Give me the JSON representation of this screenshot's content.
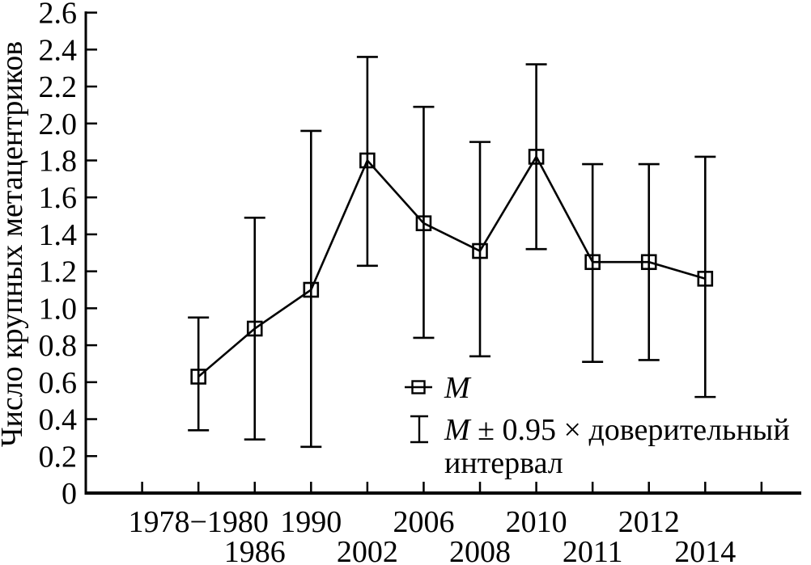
{
  "figure": {
    "background_color": "#ffffff",
    "foreground_color": "#000000"
  },
  "chart_data": {
    "type": "line",
    "title": "",
    "xlabel": "",
    "ylabel": "Число крупных метацентриков",
    "ylim": [
      0,
      2.6
    ],
    "y_tick_step": 0.2,
    "y_tick_labels": [
      "0",
      "0.2",
      "0.4",
      "0.6",
      "0.8",
      "1.0",
      "1.2",
      "1.4",
      "1.6",
      "1.8",
      "2.0",
      "2.2",
      "2.4",
      "2.6"
    ],
    "grid": false,
    "categories": [
      "1978−1980",
      "1986",
      "1990",
      "2002",
      "2006",
      "2008",
      "2010",
      "2011",
      "2012",
      "2014"
    ],
    "x_label_rows": [
      1,
      2,
      1,
      2,
      1,
      2,
      1,
      2,
      1,
      2
    ],
    "series": [
      {
        "name": "M",
        "marker": "open-square",
        "values": [
          0.63,
          0.89,
          1.1,
          1.8,
          1.46,
          1.31,
          1.82,
          1.25,
          1.25,
          1.16
        ]
      }
    ],
    "error_bars": {
      "label": "M ± 0.95 × доверительный интервал",
      "low": [
        0.34,
        0.29,
        0.25,
        1.23,
        0.84,
        0.74,
        1.32,
        0.71,
        0.72,
        0.52
      ],
      "high": [
        0.95,
        1.49,
        1.96,
        2.36,
        2.09,
        1.9,
        2.32,
        1.78,
        1.78,
        1.82
      ]
    },
    "legend": {
      "position": "inside-bottom-right",
      "entries": [
        {
          "symbol": "open-square-with-line",
          "label_italic": "M",
          "label_rest": "",
          "label_full": "M"
        },
        {
          "symbol": "error-bar",
          "label_italic": "M",
          "label_rest": " ± 0.95 × доверительный",
          "label_line2": "интервал",
          "label_full": "M ± 0.95 × доверительный интервал"
        }
      ]
    },
    "colors": {
      "line": "#000000",
      "marker_stroke": "#000000",
      "text": "#000000",
      "background": "#ffffff"
    }
  }
}
